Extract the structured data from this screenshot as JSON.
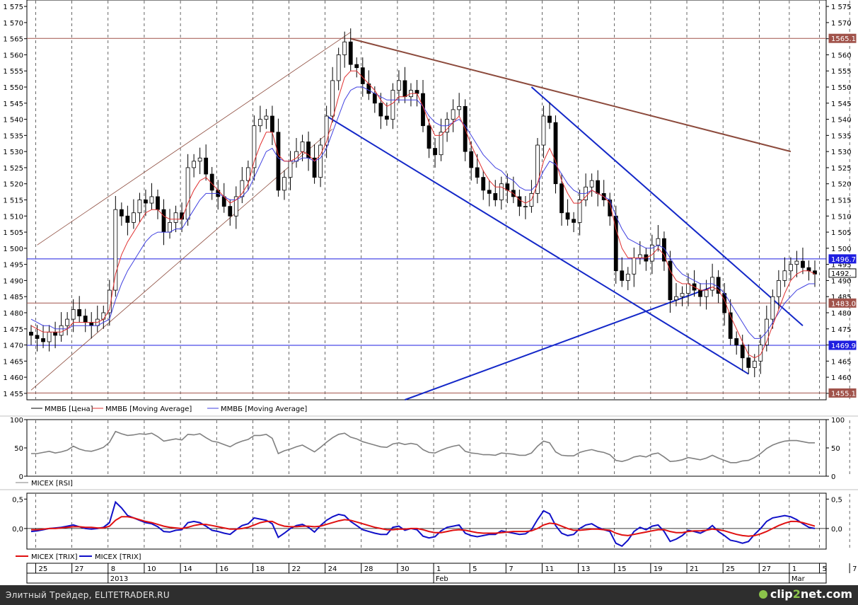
{
  "footer": {
    "credit": "Элитный Трейдер, ELITETRADER.RU",
    "brand_part1": "clip",
    "brand_part2": "2",
    "brand_part3": "net",
    "brand_part4": ".com"
  },
  "colors": {
    "price": "#000000",
    "ma_fast": "#e03030",
    "ma_slow": "#4040e0",
    "trendline_blue": "#1428c8",
    "trendline_brown": "#8c4a3c",
    "hline_brown": "#a0524a",
    "hline_blue": "#1e1ee0",
    "rsi": "#808080",
    "trix_red": "#e01010",
    "trix_blue": "#1010c8"
  },
  "chart_data": [
    {
      "type": "candlestick",
      "panel": "price",
      "legend": [
        "ММВБ [Цена]",
        "ММВБ [Moving Average]",
        "ММВБ [Moving Average]"
      ],
      "y_ticks": [
        "1 455",
        "1 460",
        "1 465",
        "1 470",
        "1 475",
        "1 480",
        "1 485",
        "1 490",
        "1 495",
        "1 500",
        "1 505",
        "1 510",
        "1 515",
        "1 520",
        "1 525",
        "1 530",
        "1 535",
        "1 540",
        "1 545",
        "1 550",
        "1 555",
        "1 560",
        "1 565",
        "1 570",
        "1 575"
      ],
      "ylim": [
        1453,
        1577
      ],
      "grid": "vertical-dashed",
      "price_labels": [
        {
          "text": "1565.1",
          "value": 1565.1,
          "color": "brown"
        },
        {
          "text": "1496.7",
          "value": 1496.7,
          "color": "blue"
        },
        {
          "text": "1492.",
          "value": 1492.3,
          "color": "white"
        },
        {
          "text": "1483.0",
          "value": 1483.0,
          "color": "brown"
        },
        {
          "text": "1469.9",
          "value": 1469.9,
          "color": "blue"
        },
        {
          "text": "1455.1",
          "value": 1455.1,
          "color": "brown"
        }
      ],
      "horizontal_lines": [
        {
          "value": 1565.1,
          "color": "brown"
        },
        {
          "value": 1496.7,
          "color": "blue"
        },
        {
          "value": 1483.0,
          "color": "brown"
        },
        {
          "value": 1469.9,
          "color": "blue"
        },
        {
          "value": 1455.1,
          "color": "brown"
        }
      ],
      "close_series": [
        1473,
        1472,
        1471,
        1474,
        1473,
        1476,
        1478,
        1481,
        1479,
        1477,
        1476,
        1478,
        1480,
        1487,
        1512,
        1510,
        1508,
        1511,
        1515,
        1514,
        1516,
        1512,
        1505,
        1508,
        1511,
        1509,
        1525,
        1527,
        1528,
        1523,
        1518,
        1516,
        1513,
        1510,
        1516,
        1521,
        1525,
        1538,
        1540,
        1541,
        1536,
        1518,
        1522,
        1527,
        1530,
        1533,
        1528,
        1522,
        1532,
        1541,
        1552,
        1560,
        1564,
        1557,
        1556,
        1551,
        1548,
        1545,
        1541,
        1540,
        1549,
        1552,
        1547,
        1549,
        1548,
        1538,
        1531,
        1529,
        1536,
        1540,
        1543,
        1544,
        1530,
        1525,
        1522,
        1518,
        1517,
        1515,
        1520,
        1518,
        1516,
        1513,
        1513,
        1517,
        1532,
        1541,
        1539,
        1520,
        1511,
        1509,
        1508,
        1515,
        1519,
        1521,
        1517,
        1515,
        1510,
        1493,
        1490,
        1492,
        1497,
        1498,
        1496,
        1501,
        1503,
        1496,
        1484,
        1485,
        1486,
        1489,
        1487,
        1485,
        1487,
        1491,
        1486,
        1480,
        1472,
        1470,
        1466,
        1463,
        1465,
        1470,
        1478,
        1485,
        1490,
        1493,
        1495,
        1496,
        1494,
        1493,
        1492
      ],
      "ma_fast_series": [
        1476,
        1475,
        1474,
        1474,
        1474,
        1474,
        1475,
        1477,
        1477,
        1477,
        1477,
        1477,
        1478,
        1481,
        1492,
        1498,
        1502,
        1505,
        1508,
        1511,
        1512,
        1512,
        1510,
        1509,
        1509,
        1509,
        1514,
        1518,
        1521,
        1522,
        1520,
        1518,
        1516,
        1514,
        1515,
        1517,
        1520,
        1527,
        1532,
        1536,
        1536,
        1529,
        1527,
        1527,
        1528,
        1530,
        1529,
        1527,
        1529,
        1533,
        1540,
        1547,
        1553,
        1555,
        1555,
        1553,
        1551,
        1549,
        1546,
        1544,
        1545,
        1547,
        1547,
        1548,
        1548,
        1544,
        1539,
        1535,
        1535,
        1537,
        1539,
        1541,
        1537,
        1532,
        1528,
        1524,
        1521,
        1519,
        1519,
        1518,
        1517,
        1515,
        1514,
        1515,
        1520,
        1527,
        1531,
        1527,
        1521,
        1517,
        1514,
        1514,
        1516,
        1518,
        1517,
        1516,
        1514,
        1506,
        1500,
        1497,
        1497,
        1497,
        1497,
        1498,
        1500,
        1498,
        1493,
        1490,
        1489,
        1489,
        1488,
        1487,
        1487,
        1488,
        1487,
        1484,
        1479,
        1475,
        1471,
        1467,
        1466,
        1467,
        1471,
        1476,
        1481,
        1486,
        1490,
        1492,
        1493,
        1493,
        1492
      ],
      "ma_slow_series": [
        1478,
        1477,
        1476,
        1476,
        1475,
        1475,
        1475,
        1476,
        1476,
        1476,
        1476,
        1476,
        1477,
        1478,
        1484,
        1489,
        1493,
        1496,
        1499,
        1502,
        1504,
        1505,
        1505,
        1505,
        1506,
        1506,
        1509,
        1512,
        1515,
        1517,
        1517,
        1517,
        1516,
        1515,
        1515,
        1516,
        1518,
        1522,
        1526,
        1530,
        1531,
        1528,
        1527,
        1527,
        1527,
        1528,
        1528,
        1527,
        1528,
        1531,
        1536,
        1541,
        1546,
        1549,
        1550,
        1550,
        1549,
        1548,
        1547,
        1546,
        1546,
        1546,
        1546,
        1546,
        1546,
        1544,
        1541,
        1539,
        1538,
        1538,
        1539,
        1540,
        1538,
        1535,
        1532,
        1529,
        1527,
        1525,
        1524,
        1522,
        1521,
        1519,
        1518,
        1518,
        1520,
        1524,
        1527,
        1526,
        1523,
        1520,
        1518,
        1517,
        1517,
        1518,
        1517,
        1516,
        1515,
        1510,
        1506,
        1503,
        1502,
        1501,
        1500,
        1500,
        1501,
        1500,
        1497,
        1494,
        1492,
        1491,
        1490,
        1489,
        1489,
        1489,
        1488,
        1486,
        1483,
        1480,
        1477,
        1474,
        1472,
        1472,
        1474,
        1477,
        1480,
        1483,
        1485,
        1487,
        1488,
        1489,
        1489
      ],
      "trendlines": [
        {
          "from": [
            1,
            1501
          ],
          "to": [
            53,
            1567
          ],
          "color": "brown"
        },
        {
          "from": [
            0,
            1456
          ],
          "to": [
            50,
            1537
          ],
          "color": "brown"
        },
        {
          "from": [
            53,
            1565
          ],
          "to": [
            126,
            1530
          ],
          "color": "brown"
        },
        {
          "from": [
            49,
            1541
          ],
          "to": [
            119,
            1461
          ],
          "color": "blue"
        },
        {
          "from": [
            83,
            1550
          ],
          "to": [
            128,
            1476
          ],
          "color": "blue"
        },
        {
          "from": [
            62,
            1453
          ],
          "to": [
            113,
            1488
          ],
          "color": "blue"
        }
      ]
    },
    {
      "type": "line",
      "panel": "rsi",
      "legend": [
        "MICEX [RSI]"
      ],
      "y_ticks": [
        "0",
        "50",
        "100"
      ],
      "ylim": [
        0,
        100
      ],
      "series": [
        {
          "values": [
            40,
            40,
            42,
            44,
            41,
            43,
            46,
            53,
            48,
            45,
            44,
            47,
            51,
            60,
            79,
            75,
            72,
            73,
            75,
            74,
            76,
            70,
            62,
            64,
            66,
            64,
            74,
            73,
            75,
            68,
            62,
            60,
            56,
            52,
            58,
            62,
            65,
            72,
            72,
            74,
            67,
            40,
            45,
            48,
            52,
            55,
            49,
            43,
            51,
            60,
            68,
            74,
            76,
            69,
            66,
            61,
            58,
            55,
            52,
            51,
            57,
            59,
            56,
            58,
            56,
            47,
            42,
            41,
            46,
            50,
            53,
            55,
            44,
            41,
            40,
            38,
            38,
            37,
            41,
            40,
            39,
            37,
            37,
            41,
            53,
            62,
            59,
            43,
            37,
            36,
            36,
            42,
            45,
            47,
            44,
            42,
            38,
            28,
            26,
            29,
            34,
            36,
            34,
            39,
            41,
            34,
            26,
            27,
            29,
            33,
            31,
            29,
            32,
            37,
            32,
            28,
            24,
            24,
            27,
            28,
            33,
            40,
            49,
            55,
            59,
            62,
            63,
            63,
            61,
            59,
            59
          ]
        }
      ]
    },
    {
      "type": "line",
      "panel": "trix",
      "legend": [
        "MICEX [TRIX]",
        "MICEX [TRIX]"
      ],
      "y_ticks": [
        "0,0",
        "0,5"
      ],
      "ylim": [
        -0.35,
        0.6
      ],
      "series": [
        {
          "name": "MICEX [TRIX]",
          "color": "red",
          "values": [
            -0.02,
            -0.02,
            -0.01,
            0.0,
            0.0,
            0.01,
            0.02,
            0.03,
            0.03,
            0.02,
            0.02,
            0.01,
            0.01,
            0.04,
            0.14,
            0.2,
            0.2,
            0.18,
            0.15,
            0.12,
            0.1,
            0.07,
            0.04,
            0.02,
            0.01,
            0.0,
            0.02,
            0.05,
            0.07,
            0.07,
            0.05,
            0.03,
            0.01,
            -0.01,
            -0.01,
            0.0,
            0.02,
            0.06,
            0.1,
            0.12,
            0.12,
            0.07,
            0.04,
            0.03,
            0.03,
            0.04,
            0.04,
            0.03,
            0.04,
            0.07,
            0.1,
            0.13,
            0.15,
            0.14,
            0.11,
            0.08,
            0.05,
            0.02,
            0.0,
            -0.02,
            -0.02,
            -0.01,
            -0.01,
            0.0,
            0.0,
            -0.02,
            -0.05,
            -0.07,
            -0.07,
            -0.05,
            -0.03,
            -0.02,
            -0.03,
            -0.05,
            -0.07,
            -0.08,
            -0.08,
            -0.08,
            -0.07,
            -0.06,
            -0.05,
            -0.05,
            -0.05,
            -0.04,
            0.0,
            0.06,
            0.09,
            0.08,
            0.04,
            0.0,
            -0.03,
            -0.03,
            -0.02,
            -0.01,
            -0.01,
            -0.02,
            -0.03,
            -0.08,
            -0.11,
            -0.12,
            -0.1,
            -0.08,
            -0.06,
            -0.04,
            -0.02,
            -0.02,
            -0.05,
            -0.07,
            -0.07,
            -0.05,
            -0.04,
            -0.04,
            -0.03,
            -0.01,
            -0.02,
            -0.04,
            -0.07,
            -0.1,
            -0.12,
            -0.13,
            -0.12,
            -0.09,
            -0.05,
            0.0,
            0.05,
            0.09,
            0.12,
            0.12,
            0.1,
            0.07,
            0.04
          ]
        },
        {
          "name": "MICEX [TRIX]",
          "color": "blue",
          "values": [
            -0.05,
            -0.04,
            -0.02,
            0.0,
            0.01,
            0.02,
            0.04,
            0.06,
            0.03,
            0.0,
            -0.01,
            0.0,
            0.02,
            0.1,
            0.45,
            0.35,
            0.22,
            0.18,
            0.14,
            0.1,
            0.08,
            0.03,
            -0.05,
            -0.06,
            -0.03,
            -0.02,
            0.1,
            0.12,
            0.1,
            0.04,
            -0.03,
            -0.05,
            -0.08,
            -0.1,
            -0.02,
            0.05,
            0.08,
            0.18,
            0.16,
            0.14,
            0.08,
            -0.15,
            -0.08,
            0.0,
            0.05,
            0.07,
            0.02,
            -0.06,
            0.05,
            0.14,
            0.2,
            0.24,
            0.22,
            0.12,
            0.05,
            -0.02,
            -0.05,
            -0.08,
            -0.1,
            -0.1,
            0.02,
            0.04,
            -0.03,
            0.0,
            -0.02,
            -0.13,
            -0.16,
            -0.14,
            -0.04,
            0.02,
            0.04,
            0.06,
            -0.08,
            -0.12,
            -0.14,
            -0.12,
            -0.1,
            -0.1,
            -0.04,
            -0.06,
            -0.08,
            -0.1,
            -0.09,
            -0.02,
            0.15,
            0.3,
            0.25,
            0.05,
            -0.08,
            -0.12,
            -0.1,
            0.0,
            0.06,
            0.08,
            0.02,
            -0.02,
            -0.05,
            -0.25,
            -0.3,
            -0.2,
            -0.05,
            0.02,
            -0.02,
            0.04,
            0.06,
            -0.05,
            -0.22,
            -0.18,
            -0.12,
            -0.03,
            -0.05,
            -0.08,
            -0.03,
            0.05,
            -0.05,
            -0.12,
            -0.2,
            -0.22,
            -0.25,
            -0.22,
            -0.1,
            0.0,
            0.12,
            0.18,
            0.2,
            0.22,
            0.2,
            0.15,
            0.08,
            0.02,
            0.0
          ]
        }
      ]
    }
  ],
  "x_axis": {
    "labels": [
      {
        "i": 1,
        "text": "25"
      },
      {
        "i": 7,
        "text": "27"
      },
      {
        "i": 13,
        "text": "8"
      },
      {
        "i": 19,
        "text": "10"
      },
      {
        "i": 25,
        "text": "14"
      },
      {
        "i": 31,
        "text": "16"
      },
      {
        "i": 37,
        "text": "18"
      },
      {
        "i": 43,
        "text": "22"
      },
      {
        "i": 49,
        "text": "24"
      },
      {
        "i": 55,
        "text": "28"
      },
      {
        "i": 61,
        "text": "30"
      },
      {
        "i": 67,
        "text": "1"
      },
      {
        "i": 73,
        "text": "5"
      },
      {
        "i": 79,
        "text": "7"
      },
      {
        "i": 85,
        "text": "11"
      },
      {
        "i": 91,
        "text": "13"
      },
      {
        "i": 97,
        "text": "15"
      },
      {
        "i": 103,
        "text": "19"
      },
      {
        "i": 109,
        "text": "21"
      },
      {
        "i": 115,
        "text": "25"
      },
      {
        "i": 121,
        "text": "27"
      },
      {
        "i": 126,
        "text": "1"
      },
      {
        "i": 131,
        "text": "5"
      },
      {
        "i": 136,
        "text": "7"
      }
    ],
    "period_labels": [
      {
        "i": 13,
        "text": "2013"
      },
      {
        "i": 67,
        "text": "Feb"
      },
      {
        "i": 126,
        "text": "Mar"
      }
    ]
  }
}
